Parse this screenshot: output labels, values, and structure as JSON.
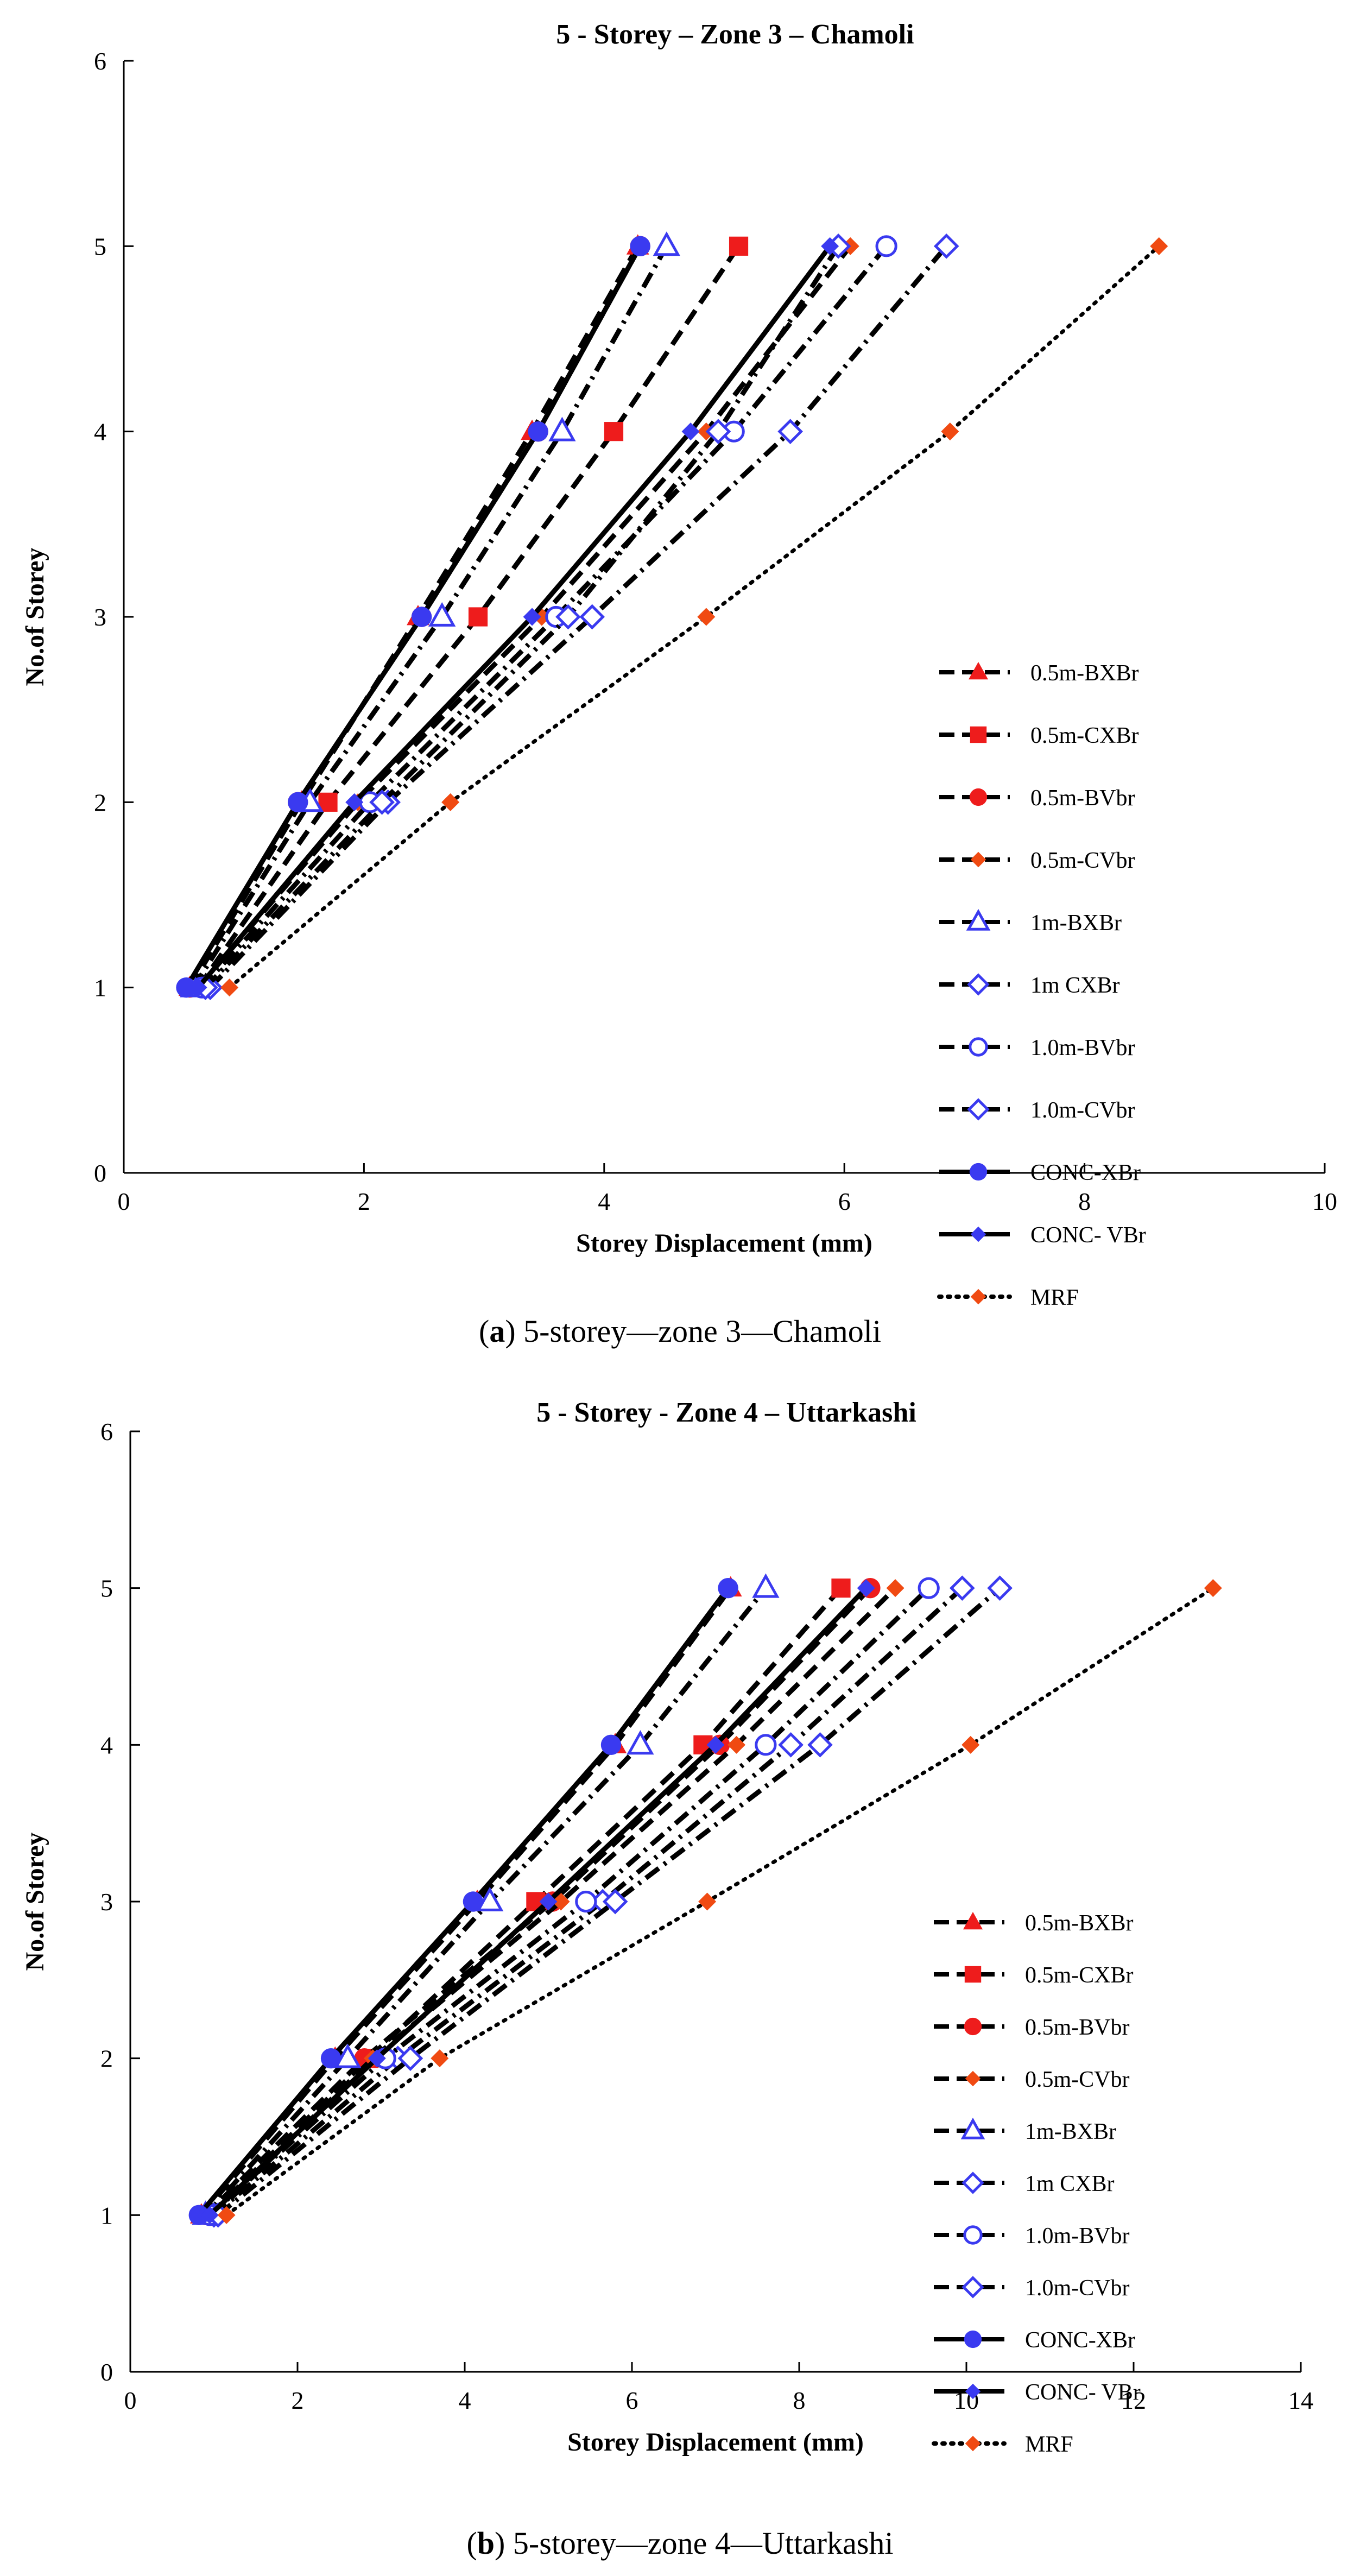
{
  "captions": [
    {
      "label": "a",
      "text": "5-storey—zone 3—Chamoli"
    },
    {
      "label": "b",
      "text": "5-storey—zone 4—Uttarkashi"
    }
  ],
  "colors": {
    "red": "#ee1c1c",
    "orange": "#f04a12",
    "blue": "#3a3af0",
    "black": "#000000"
  },
  "chart_data": [
    {
      "type": "line",
      "title": "5 - Storey – Zone 3 – Chamoli",
      "xlabel": "Storey Displacement (mm)",
      "ylabel": "No.of Storey",
      "xlim": [
        0,
        10
      ],
      "ylim": [
        0,
        6
      ],
      "xticks": [
        0,
        2,
        4,
        6,
        8,
        10
      ],
      "yticks": [
        0,
        1,
        2,
        3,
        4,
        5,
        6
      ],
      "legend_position": "right",
      "y": [
        1,
        2,
        3,
        4,
        5
      ],
      "series": [
        {
          "name": "0.5m-BXBr",
          "marker": "triangle",
          "color": "red",
          "dash": "long",
          "x": [
            0.55,
            1.48,
            2.45,
            3.4,
            4.28
          ]
        },
        {
          "name": "0.5m-CXBr",
          "marker": "square",
          "color": "red",
          "dash": "long",
          "x": [
            0.62,
            1.7,
            2.95,
            4.08,
            5.12
          ]
        },
        {
          "name": "0.5m-BVbr",
          "marker": "circle",
          "color": "red",
          "dash": "long",
          "x": [
            0.55,
            1.45,
            2.48,
            3.45,
            4.3
          ]
        },
        {
          "name": "0.5m-CVbr",
          "marker": "diamond",
          "color": "orange",
          "dash": "long",
          "x": [
            0.62,
            1.95,
            3.48,
            4.85,
            6.05
          ]
        },
        {
          "name": "1m-BXBr",
          "marker": "triangle-open",
          "color": "blue",
          "dash": "longdot",
          "x": [
            0.58,
            1.55,
            2.65,
            3.65,
            4.52
          ]
        },
        {
          "name": "1m CXBr",
          "marker": "diamond-open",
          "color": "blue",
          "dash": "longdot",
          "x": [
            0.72,
            2.2,
            3.9,
            5.55,
            6.85
          ]
        },
        {
          "name": "1.0m-BVbr",
          "marker": "circle-open",
          "color": "blue",
          "dash": "longdot",
          "x": [
            0.65,
            2.05,
            3.6,
            5.08,
            6.35
          ]
        },
        {
          "name": "1.0m-CVbr",
          "marker": "diamond-open",
          "color": "blue",
          "dash": "longdot",
          "x": [
            0.68,
            2.15,
            3.7,
            4.95,
            5.95
          ]
        },
        {
          "name": "CONC-XBr",
          "marker": "circle",
          "color": "blue",
          "dash": "solid",
          "x": [
            0.52,
            1.45,
            2.48,
            3.45,
            4.3
          ]
        },
        {
          "name": "CONC- VBr",
          "marker": "diamond",
          "color": "blue",
          "dash": "solid",
          "x": [
            0.62,
            1.92,
            3.4,
            4.72,
            5.88
          ]
        },
        {
          "name": "MRF",
          "marker": "diamond",
          "color": "orange",
          "dash": "dotted",
          "x": [
            0.88,
            2.72,
            4.85,
            6.88,
            8.62
          ]
        }
      ]
    },
    {
      "type": "line",
      "title": "5 - Storey  - Zone 4 – Uttarkashi",
      "xlabel": "Storey Displacement (mm)",
      "ylabel": "No.of Storey",
      "xlim": [
        0,
        14
      ],
      "ylim": [
        0,
        6
      ],
      "xticks": [
        0,
        2,
        4,
        6,
        8,
        10,
        12,
        14
      ],
      "yticks": [
        0,
        1,
        2,
        3,
        4,
        5,
        6
      ],
      "legend_position": "right",
      "y": [
        1,
        2,
        3,
        4,
        5
      ],
      "series": [
        {
          "name": "0.5m-BXBr",
          "marker": "triangle",
          "color": "red",
          "dash": "long",
          "x": [
            0.85,
            2.45,
            4.15,
            5.8,
            7.18
          ]
        },
        {
          "name": "0.5m-CXBr",
          "marker": "square",
          "color": "red",
          "dash": "long",
          "x": [
            0.95,
            2.85,
            4.85,
            6.85,
            8.5
          ]
        },
        {
          "name": "0.5m-BVbr",
          "marker": "circle",
          "color": "red",
          "dash": "long",
          "x": [
            0.9,
            2.8,
            5.05,
            7.05,
            8.85
          ]
        },
        {
          "name": "0.5m-CVbr",
          "marker": "diamond",
          "color": "orange",
          "dash": "long",
          "x": [
            1.0,
            2.9,
            5.15,
            7.25,
            9.15
          ]
        },
        {
          "name": "1m-BXBr",
          "marker": "triangle-open",
          "color": "blue",
          "dash": "longdot",
          "x": [
            0.9,
            2.6,
            4.3,
            6.1,
            7.6
          ]
        },
        {
          "name": "1m CXBr",
          "marker": "diamond-open",
          "color": "blue",
          "dash": "longdot",
          "x": [
            1.0,
            3.2,
            5.65,
            7.9,
            9.95
          ]
        },
        {
          "name": "1.0m-BVbr",
          "marker": "circle-open",
          "color": "blue",
          "dash": "longdot",
          "x": [
            0.95,
            3.05,
            5.45,
            7.6,
            9.55
          ]
        },
        {
          "name": "1.0m-CVbr",
          "marker": "diamond-open",
          "color": "blue",
          "dash": "longdot",
          "x": [
            1.05,
            3.35,
            5.8,
            8.25,
            10.4
          ]
        },
        {
          "name": "CONC-XBr",
          "marker": "circle",
          "color": "blue",
          "dash": "solid",
          "x": [
            0.82,
            2.4,
            4.1,
            5.75,
            7.15
          ]
        },
        {
          "name": "CONC- VBr",
          "marker": "diamond",
          "color": "blue",
          "dash": "solid",
          "x": [
            0.95,
            2.95,
            5.0,
            7.0,
            8.8
          ]
        },
        {
          "name": "MRF",
          "marker": "diamond",
          "color": "orange",
          "dash": "dotted",
          "x": [
            1.15,
            3.7,
            6.9,
            10.05,
            12.95
          ]
        }
      ]
    }
  ]
}
